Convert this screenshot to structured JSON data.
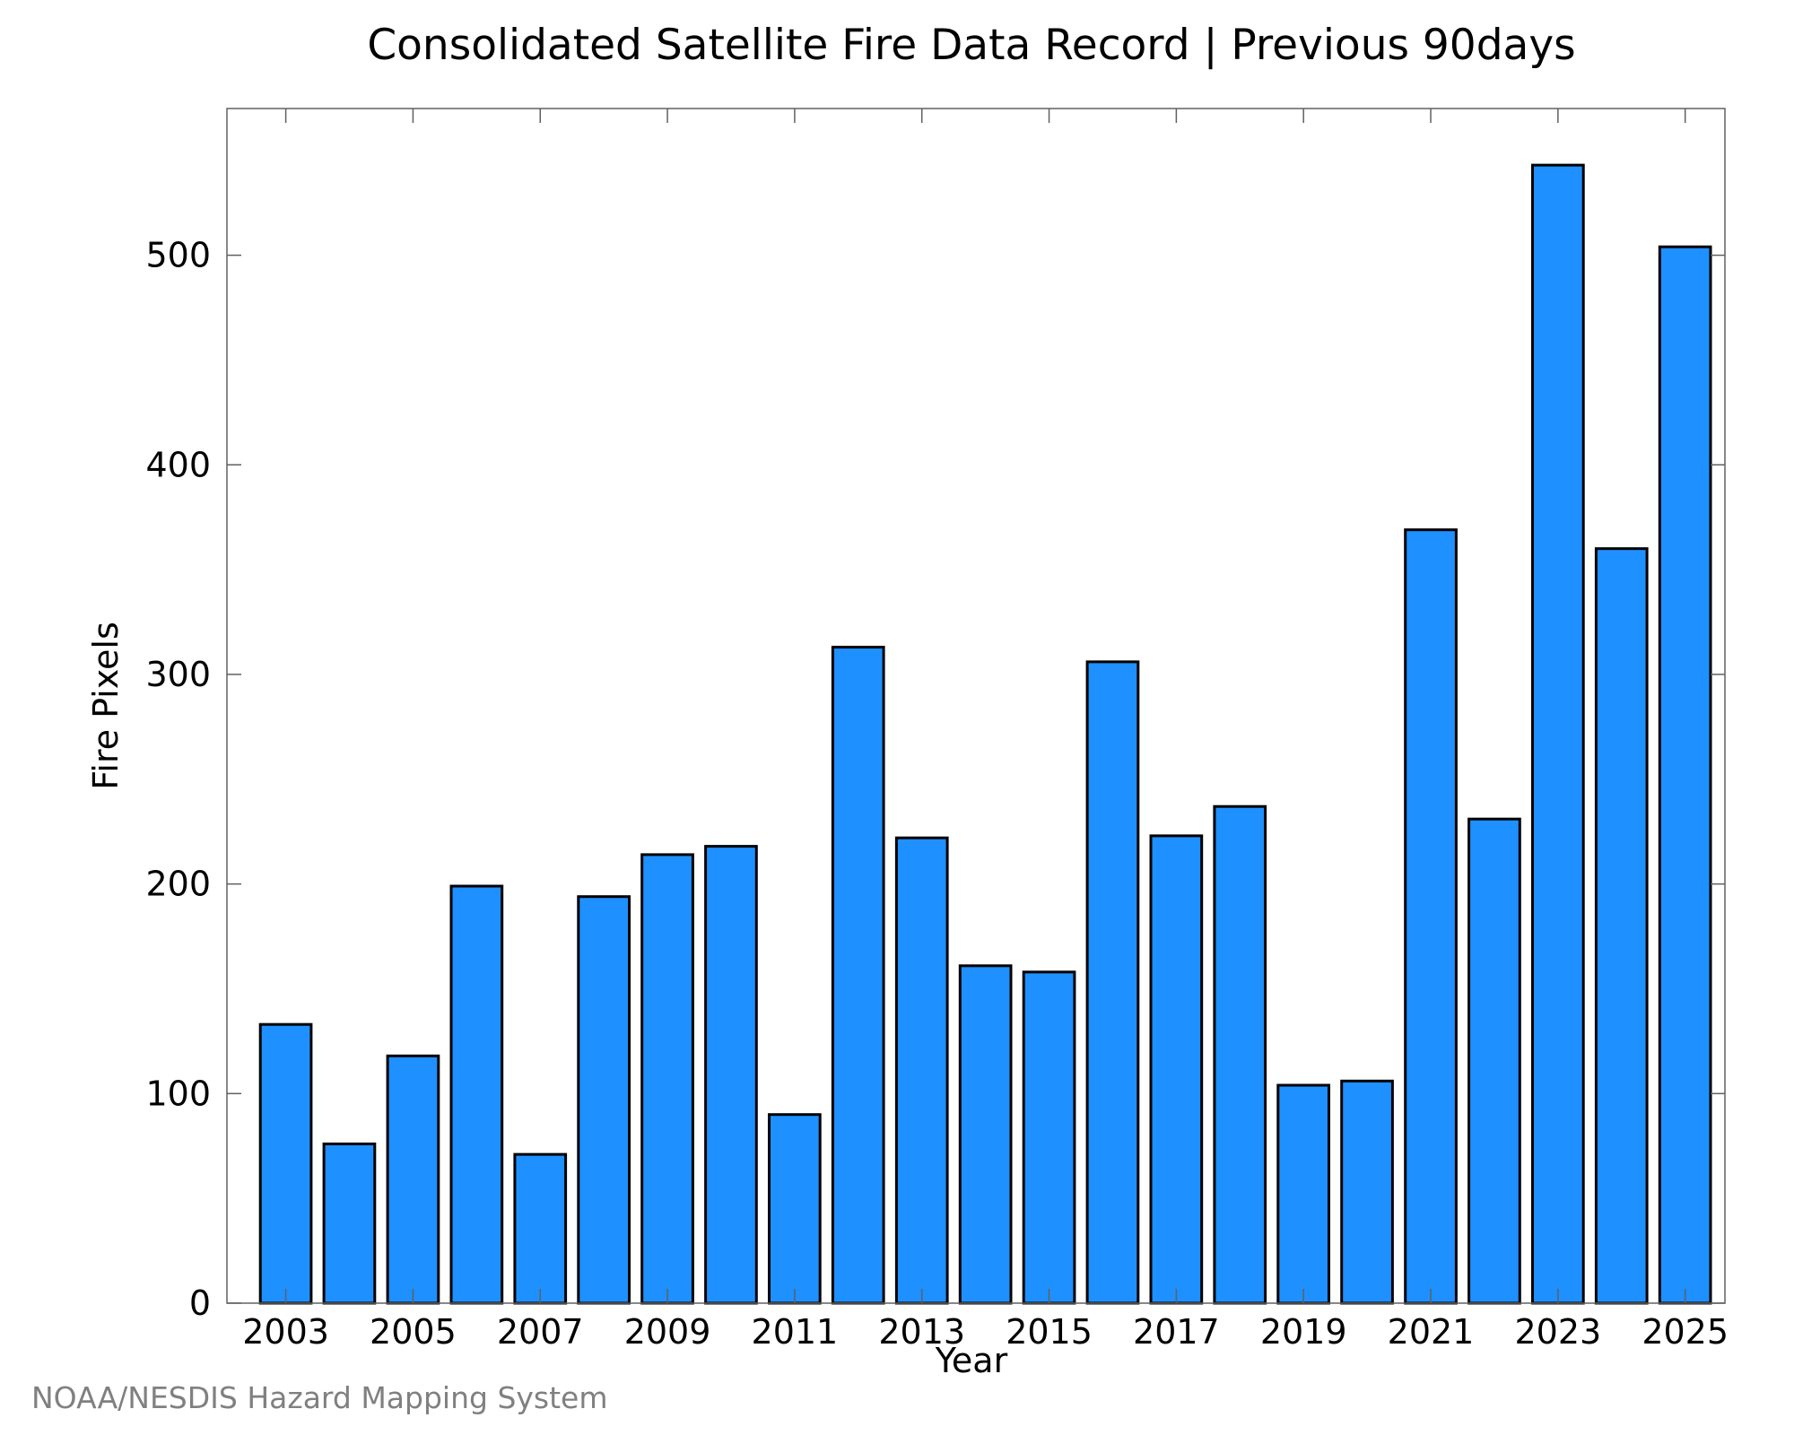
{
  "chart_data": {
    "type": "bar",
    "title": "Consolidated Satellite Fire Data Record | Previous 90days",
    "xlabel": "Year",
    "ylabel": "Fire Pixels",
    "categories": [
      "2003",
      "2004",
      "2005",
      "2006",
      "2007",
      "2008",
      "2009",
      "2010",
      "2011",
      "2012",
      "2013",
      "2014",
      "2015",
      "2016",
      "2017",
      "2018",
      "2019",
      "2020",
      "2021",
      "2022",
      "2023",
      "2024",
      "2025"
    ],
    "values": [
      133,
      76,
      118,
      199,
      71,
      194,
      214,
      218,
      90,
      313,
      222,
      161,
      158,
      306,
      223,
      237,
      104,
      106,
      369,
      231,
      543,
      360,
      504
    ],
    "ylim": [
      0,
      570
    ],
    "yticks": [
      "0",
      "100",
      "200",
      "300",
      "400",
      "500"
    ],
    "xticks": [
      "2003",
      "2005",
      "2007",
      "2009",
      "2011",
      "2013",
      "2015",
      "2017",
      "2019",
      "2021",
      "2023",
      "2025"
    ],
    "grid": false,
    "legend": "none",
    "bar_color": "#1e90ff",
    "bar_edge_color": "#000000"
  },
  "credit": "NOAA/NESDIS Hazard Mapping System"
}
